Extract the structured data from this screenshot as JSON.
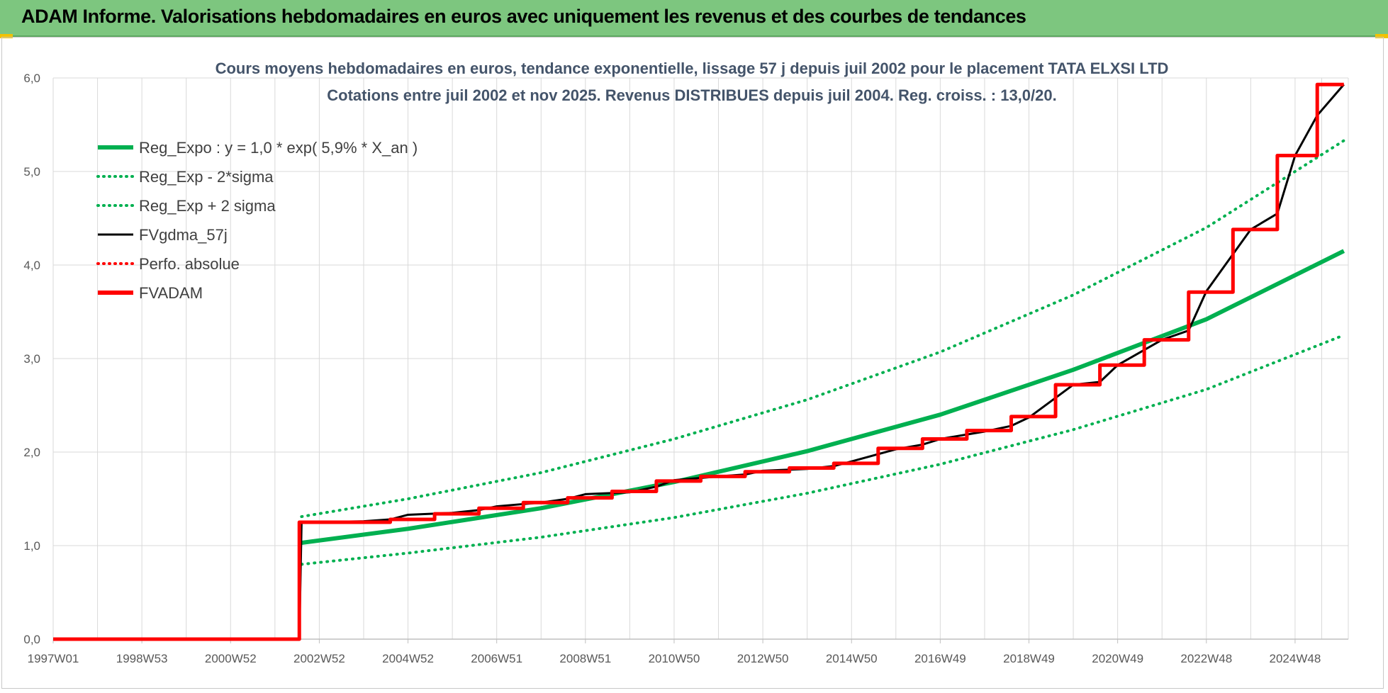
{
  "banner": {
    "title": "ADAM Informe. Valorisations hebdomadaires en euros avec uniquement les revenus et des courbes de tendances"
  },
  "colors": {
    "banner": "#7dc67f",
    "reg_green": "#00b050",
    "black": "#000000",
    "red": "#ff0000",
    "grid": "#d9d9d9"
  },
  "chart_data": {
    "type": "line",
    "title": "Cours moyens hebdomadaires en euros, tendance exponentielle, lissage 57 j depuis juil 2002 pour le placement TATA  ELXSI LTD",
    "subtitle": "Cotations entre juil 2002 et nov 2025. Revenus DISTRIBUES depuis juil 2004. Reg. croiss. : 13,0/20.",
    "xlabel": "",
    "ylabel": "",
    "x_range": [
      1997.0,
      2026.2
    ],
    "ylim": [
      0,
      6
    ],
    "y_ticks": [
      "0,0",
      "1,0",
      "2,0",
      "3,0",
      "4,0",
      "5,0",
      "6,0"
    ],
    "x_ticks": [
      {
        "label": "1997W01",
        "year": 1997.0
      },
      {
        "label": "1998W53",
        "year": 1999.0
      },
      {
        "label": "2000W52",
        "year": 2001.0
      },
      {
        "label": "2002W52",
        "year": 2003.0
      },
      {
        "label": "2004W52",
        "year": 2005.0
      },
      {
        "label": "2006W51",
        "year": 2007.0
      },
      {
        "label": "2008W51",
        "year": 2009.0
      },
      {
        "label": "2010W50",
        "year": 2011.0
      },
      {
        "label": "2012W50",
        "year": 2013.0
      },
      {
        "label": "2014W50",
        "year": 2015.0
      },
      {
        "label": "2016W49",
        "year": 2017.0
      },
      {
        "label": "2018W49",
        "year": 2019.0
      },
      {
        "label": "2020W49",
        "year": 2021.0
      },
      {
        "label": "2022W48",
        "year": 2023.0
      },
      {
        "label": "2024W48",
        "year": 2025.0
      }
    ],
    "legend": [
      {
        "name": "Reg_Expo : y = 1,0 * exp( 5,9% *  X_an )",
        "color": "#00b050",
        "style": "solid"
      },
      {
        "name": "Reg_Exp - 2*sigma",
        "color": "#00b050",
        "style": "dotted"
      },
      {
        "name": "Reg_Exp + 2 sigma",
        "color": "#00b050",
        "style": "dotted"
      },
      {
        "name": "FVgdma_57j",
        "color": "#000000",
        "style": "solid-thin"
      },
      {
        "name": "Perfo. absolue",
        "color": "#ff0000",
        "style": "dotted"
      },
      {
        "name": "FVADAM",
        "color": "#ff0000",
        "style": "solid"
      }
    ],
    "series": [
      {
        "name": "Reg_Expo",
        "color": "#00b050",
        "style": "solid",
        "x": [
          2002.6,
          2005.0,
          2008.0,
          2011.0,
          2014.0,
          2017.0,
          2020.0,
          2023.0,
          2026.1
        ],
        "values": [
          1.03,
          1.18,
          1.4,
          1.68,
          2.01,
          2.4,
          2.88,
          3.42,
          4.15
        ]
      },
      {
        "name": "Reg_Exp - 2*sigma",
        "color": "#00b050",
        "style": "dotted",
        "x": [
          2002.6,
          2005.0,
          2008.0,
          2011.0,
          2014.0,
          2017.0,
          2020.0,
          2023.0,
          2026.1
        ],
        "values": [
          0.8,
          0.92,
          1.09,
          1.3,
          1.56,
          1.87,
          2.24,
          2.67,
          3.25
        ]
      },
      {
        "name": "Reg_Exp + 2 sigma",
        "color": "#00b050",
        "style": "dotted",
        "x": [
          2002.6,
          2005.0,
          2008.0,
          2011.0,
          2014.0,
          2017.0,
          2020.0,
          2023.0,
          2026.1
        ],
        "values": [
          1.31,
          1.5,
          1.78,
          2.14,
          2.56,
          3.07,
          3.68,
          4.4,
          5.33
        ]
      },
      {
        "name": "FVgdma_57j",
        "color": "#000000",
        "style": "smooth",
        "x": [
          1997.0,
          2002.55,
          2002.6,
          2004.0,
          2004.6,
          2005.0,
          2006.0,
          2006.6,
          2007.0,
          2008.0,
          2008.6,
          2009.0,
          2010.0,
          2010.6,
          2011.0,
          2012.0,
          2012.6,
          2013.0,
          2014.0,
          2014.6,
          2015.0,
          2016.0,
          2016.6,
          2017.0,
          2018.0,
          2018.6,
          2019.0,
          2020.0,
          2020.6,
          2021.0,
          2022.0,
          2022.6,
          2023.0,
          2024.0,
          2024.6,
          2025.0,
          2025.5,
          2026.1
        ],
        "values": [
          0.0,
          0.0,
          1.25,
          1.26,
          1.28,
          1.33,
          1.35,
          1.38,
          1.42,
          1.46,
          1.5,
          1.55,
          1.57,
          1.63,
          1.7,
          1.74,
          1.76,
          1.8,
          1.82,
          1.85,
          1.9,
          2.03,
          2.08,
          2.14,
          2.22,
          2.28,
          2.37,
          2.72,
          2.75,
          2.93,
          3.2,
          3.3,
          3.72,
          4.38,
          4.55,
          5.17,
          5.6,
          5.93
        ]
      },
      {
        "name": "FVADAM",
        "color": "#ff0000",
        "style": "step",
        "x": [
          1997.0,
          2002.55,
          2004.6,
          2005.6,
          2006.6,
          2007.6,
          2008.6,
          2009.6,
          2010.6,
          2011.6,
          2012.6,
          2013.6,
          2014.6,
          2015.6,
          2016.6,
          2017.6,
          2018.6,
          2019.6,
          2020.6,
          2021.6,
          2022.6,
          2023.6,
          2024.6,
          2025.5
        ],
        "values": [
          0.0,
          1.25,
          1.28,
          1.34,
          1.4,
          1.46,
          1.51,
          1.58,
          1.69,
          1.74,
          1.79,
          1.83,
          1.88,
          2.04,
          2.14,
          2.23,
          2.38,
          2.72,
          2.93,
          3.2,
          3.71,
          4.38,
          5.17,
          5.93
        ],
        "x_end": 2026.1
      }
    ]
  }
}
